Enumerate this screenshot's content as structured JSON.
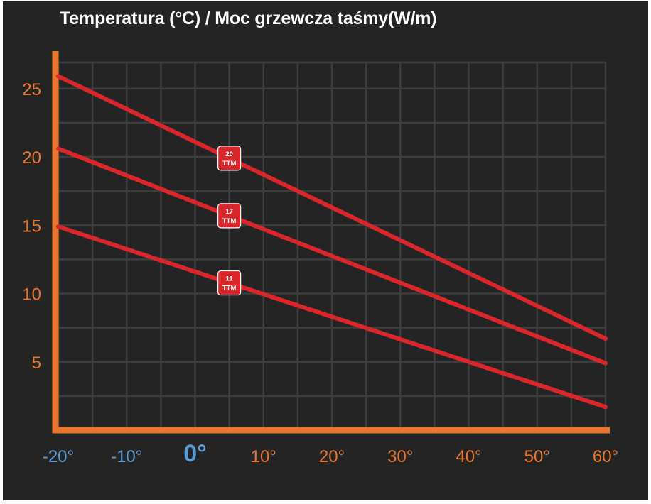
{
  "chart_data": {
    "type": "line",
    "title": "Temperatura (°C) / Moc grzewcza taśmy(W/m)",
    "xlabel": "",
    "ylabel": "",
    "xlim": [
      -20,
      60
    ],
    "ylim": [
      0,
      27
    ],
    "grid": true,
    "x_ticks": [
      {
        "value": -20,
        "label": "-20°"
      },
      {
        "value": -10,
        "label": "-10°"
      },
      {
        "value": 0,
        "label": "0°"
      },
      {
        "value": 10,
        "label": "10°"
      },
      {
        "value": 20,
        "label": "20°"
      },
      {
        "value": 30,
        "label": "30°"
      },
      {
        "value": 40,
        "label": "40°"
      },
      {
        "value": 50,
        "label": "50°"
      },
      {
        "value": 60,
        "label": "60°"
      }
    ],
    "y_ticks": [
      {
        "value": 5,
        "label": "5"
      },
      {
        "value": 10,
        "label": "10"
      },
      {
        "value": 15,
        "label": "15"
      },
      {
        "value": 20,
        "label": "20"
      },
      {
        "value": 25,
        "label": "25"
      }
    ],
    "series": [
      {
        "name": "20 TTM",
        "badge_line1": "20",
        "badge_line2": "TTM",
        "label_x": 5,
        "x": [
          -20,
          60
        ],
        "y": [
          25.9,
          6.7
        ]
      },
      {
        "name": "17 TTM",
        "badge_line1": "17",
        "badge_line2": "TTM",
        "label_x": 5,
        "x": [
          -20,
          60
        ],
        "y": [
          20.6,
          4.9
        ]
      },
      {
        "name": "11 TTM",
        "badge_line1": "11",
        "badge_line2": "TTM",
        "label_x": 5,
        "x": [
          -20,
          60
        ],
        "y": [
          14.9,
          1.7
        ]
      }
    ],
    "colors": {
      "background": "#242424",
      "grid": "#3d3d3d",
      "axis": "#e8762c",
      "line": "#d9262a",
      "negative_tick": "#5b9bd5",
      "positive_tick": "#e8762c"
    }
  }
}
